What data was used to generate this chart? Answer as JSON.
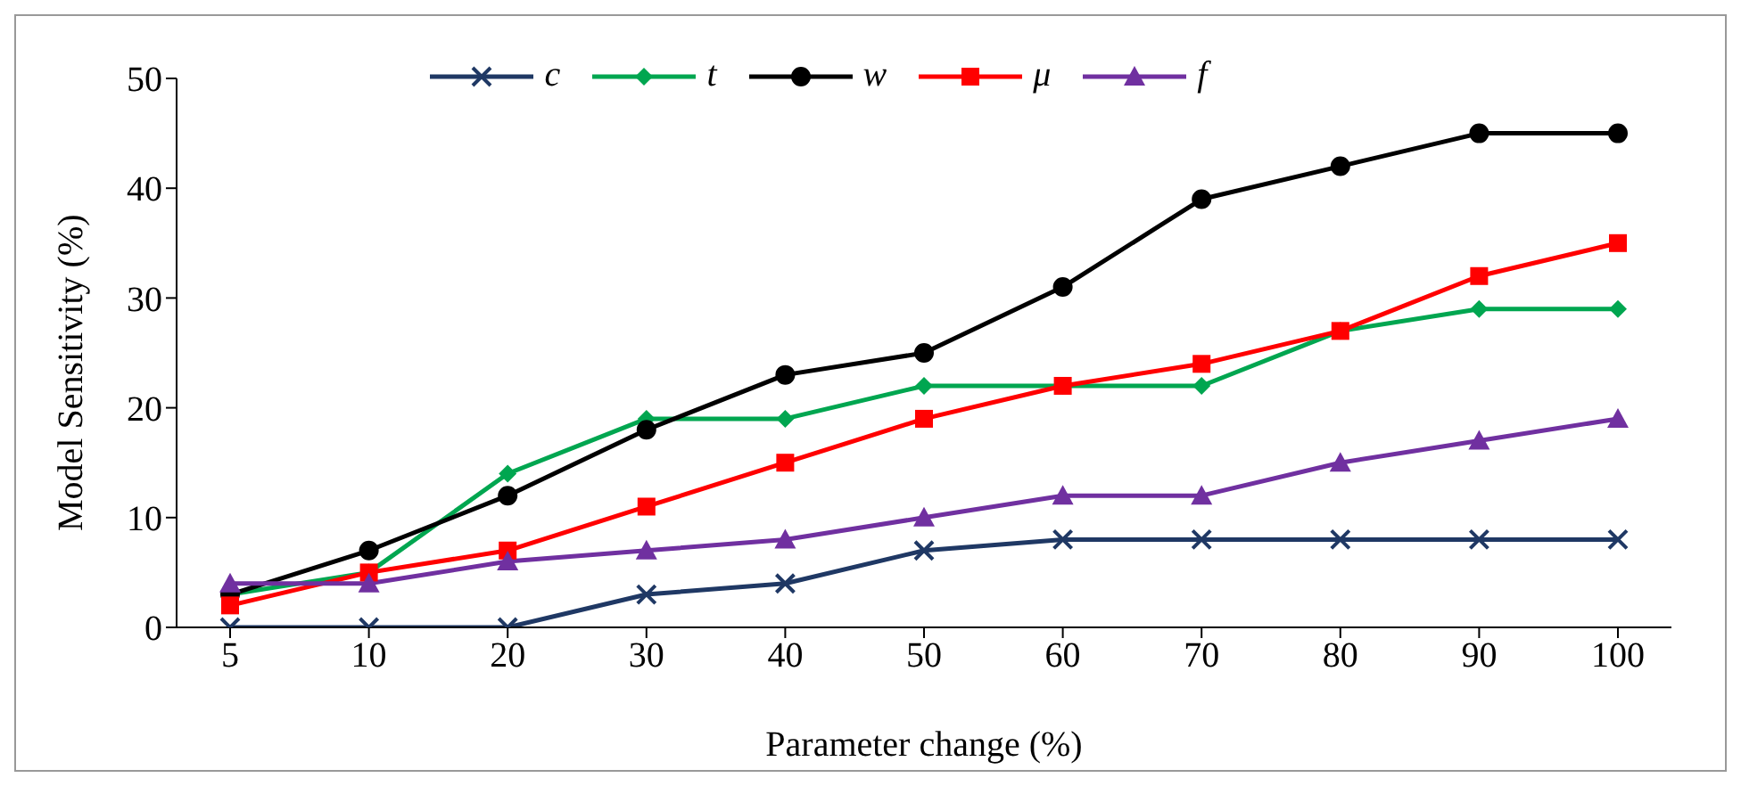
{
  "chart_data": {
    "type": "line",
    "xlabel": "Parameter change (%)",
    "ylabel": "Model Sensitivity (%)",
    "categories": [
      "5",
      "10",
      "20",
      "30",
      "40",
      "50",
      "60",
      "70",
      "80",
      "90",
      "100"
    ],
    "ylim": [
      0,
      50
    ],
    "yticks": [
      0,
      10,
      20,
      30,
      40,
      50
    ],
    "grid": false,
    "legend": "top",
    "line_style": "solid",
    "series": [
      {
        "name": "c",
        "color": "#1f3864",
        "marker": "cross",
        "values": [
          0,
          0,
          0,
          3,
          4,
          7,
          8,
          8,
          8,
          8,
          8
        ]
      },
      {
        "name": "t",
        "color": "#00a650",
        "marker": "diamond",
        "values": [
          3,
          5,
          14,
          19,
          19,
          22,
          22,
          22,
          27,
          29,
          29
        ]
      },
      {
        "name": "w",
        "color": "#000000",
        "marker": "circle",
        "values": [
          3,
          7,
          12,
          18,
          23,
          25,
          31,
          39,
          42,
          45,
          45
        ]
      },
      {
        "name": "μ",
        "color": "#ff0000",
        "marker": "square",
        "values": [
          2,
          5,
          7,
          11,
          15,
          19,
          22,
          24,
          27,
          32,
          35
        ]
      },
      {
        "name": "f",
        "color": "#7030a0",
        "marker": "triangle",
        "values": [
          4,
          4,
          6,
          7,
          8,
          10,
          12,
          12,
          15,
          17,
          19
        ]
      }
    ]
  }
}
